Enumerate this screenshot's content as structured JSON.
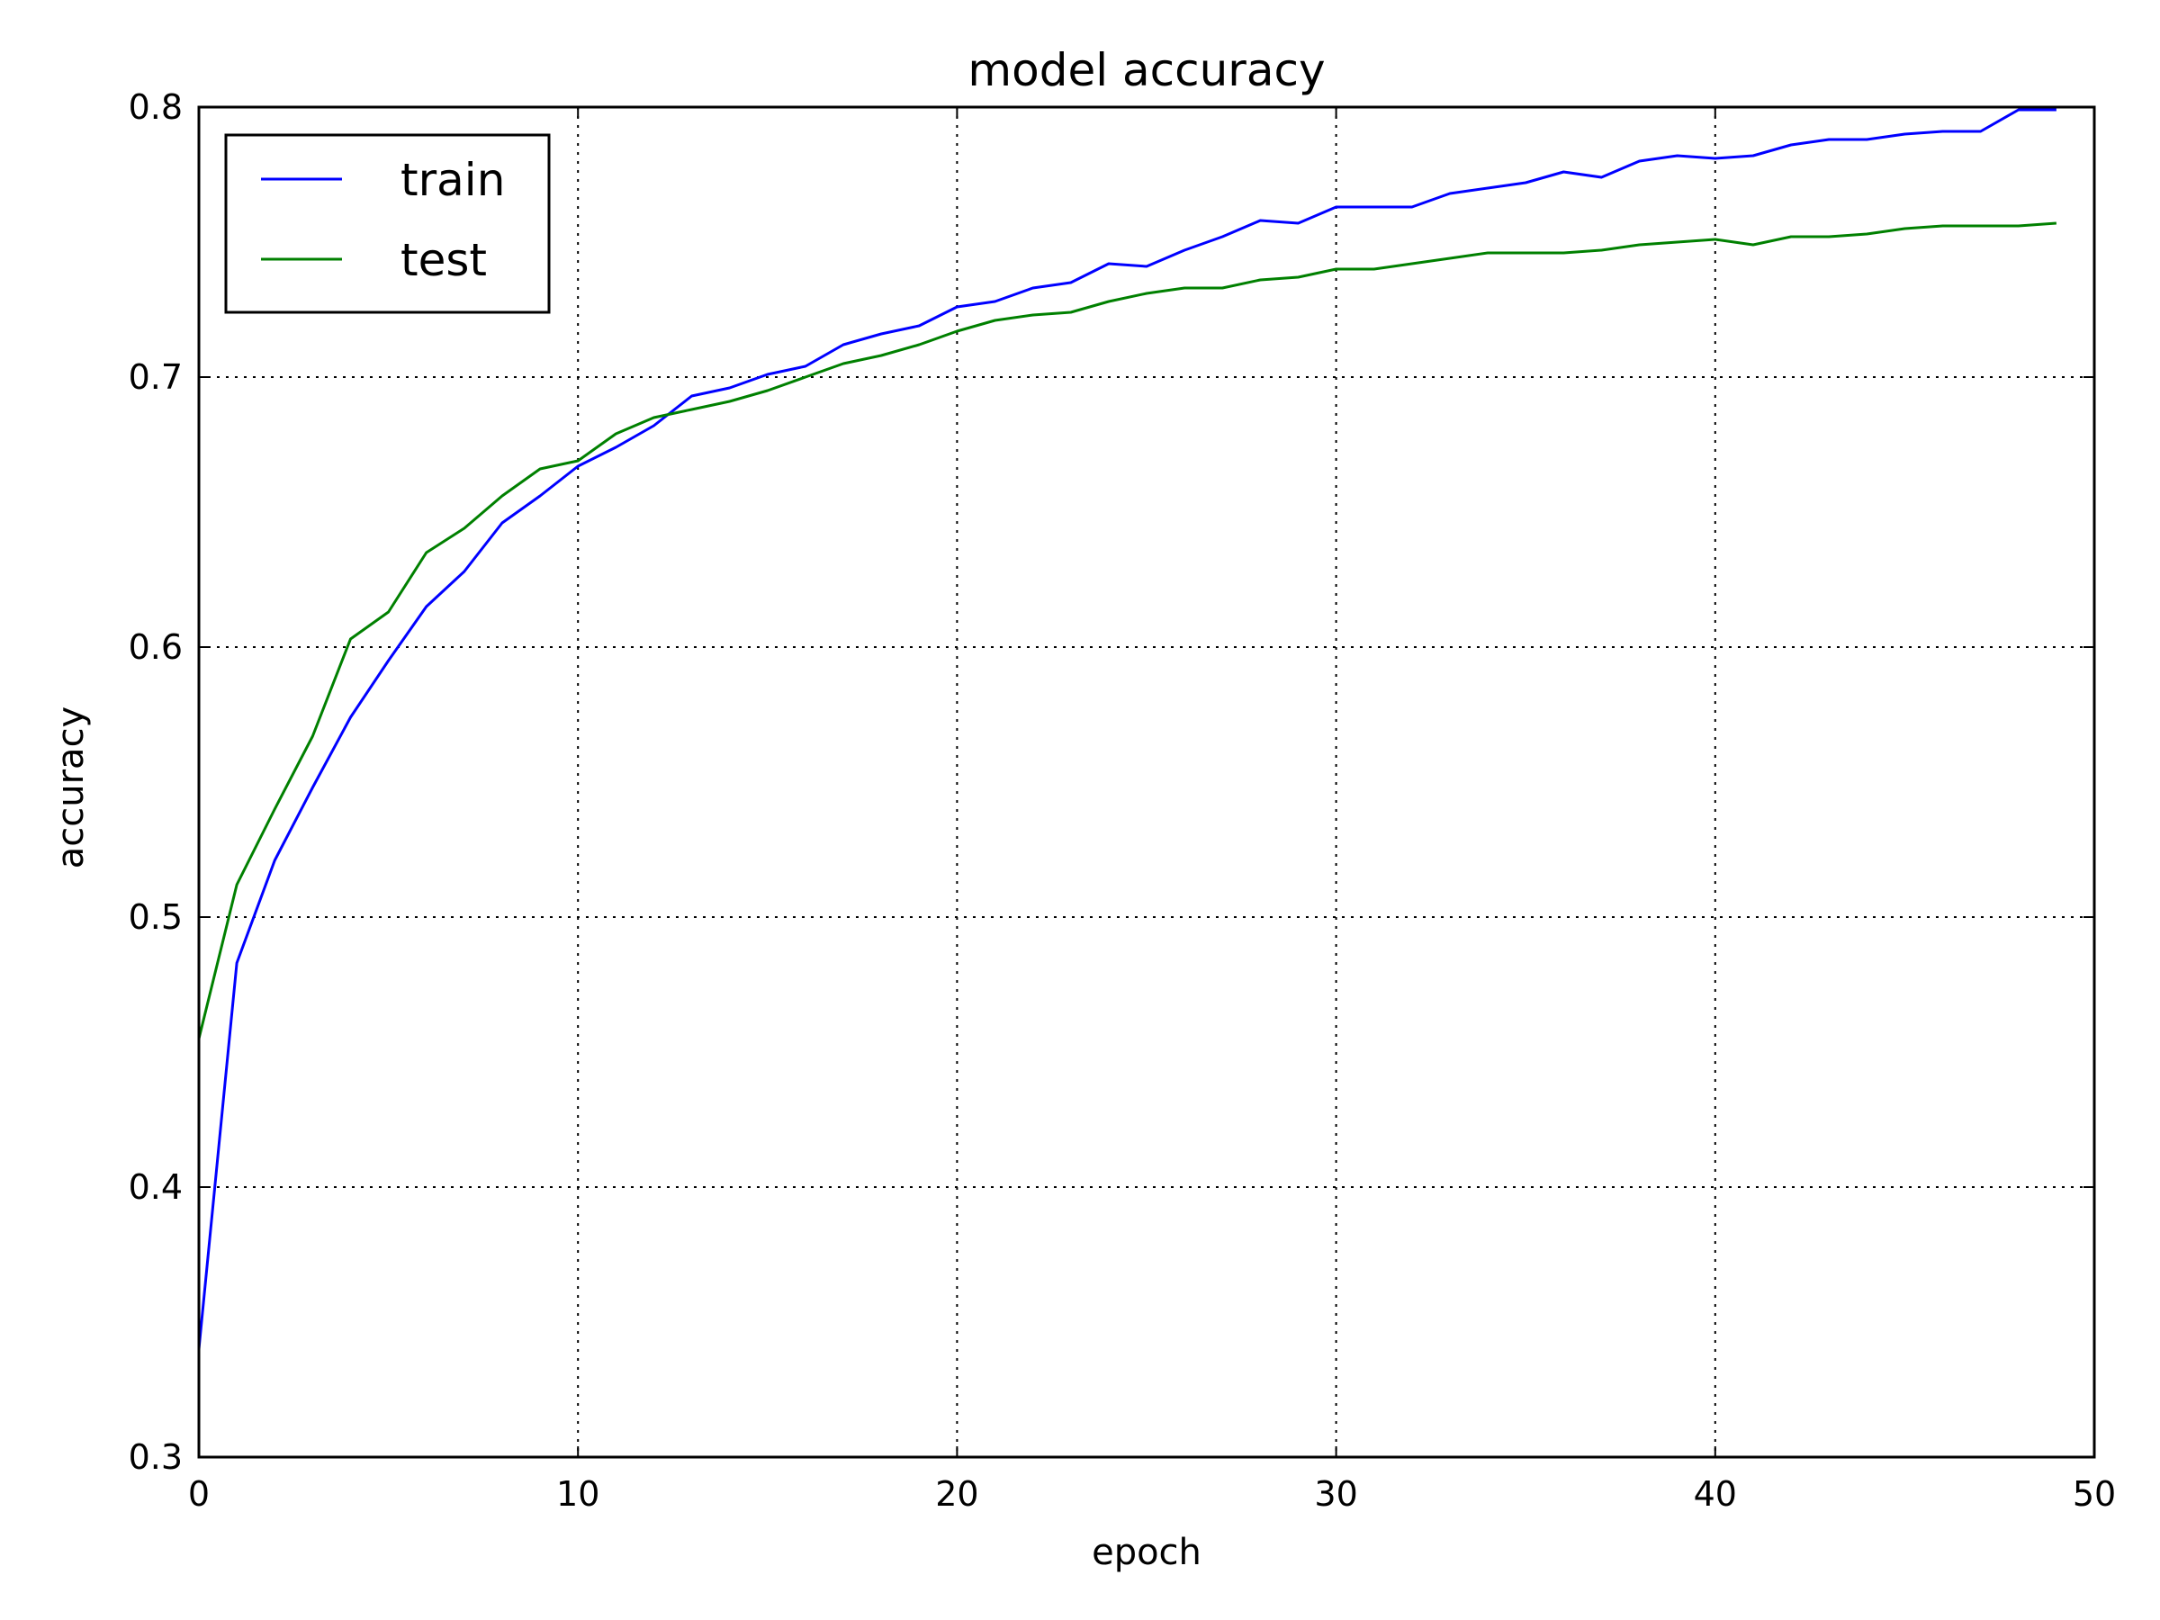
{
  "chart_data": {
    "type": "line",
    "title": "model accuracy",
    "xlabel": "epoch",
    "ylabel": "accuracy",
    "xlim": [
      0,
      50
    ],
    "ylim": [
      0.3,
      0.8
    ],
    "xticks": [
      0,
      10,
      20,
      30,
      40,
      50
    ],
    "yticks": [
      0.3,
      0.4,
      0.5,
      0.6,
      0.7,
      0.8
    ],
    "xtick_labels": [
      "0",
      "10",
      "20",
      "30",
      "40",
      "50"
    ],
    "ytick_labels": [
      "0.3",
      "0.4",
      "0.5",
      "0.6",
      "0.7",
      "0.8"
    ],
    "grid": true,
    "legend_position": "top-left",
    "x": [
      0,
      1,
      2,
      3,
      4,
      5,
      6,
      7,
      8,
      9,
      10,
      11,
      12,
      13,
      14,
      15,
      16,
      17,
      18,
      19,
      20,
      21,
      22,
      23,
      24,
      25,
      26,
      27,
      28,
      29,
      30,
      31,
      32,
      33,
      34,
      35,
      36,
      37,
      38,
      39,
      40,
      41,
      42,
      43,
      44,
      45,
      46,
      47,
      48,
      49
    ],
    "series": [
      {
        "name": "train",
        "color": "#0000ff",
        "values": [
          0.34,
          0.483,
          0.521,
          0.548,
          0.574,
          0.595,
          0.615,
          0.628,
          0.646,
          0.656,
          0.667,
          0.674,
          0.682,
          0.693,
          0.696,
          0.701,
          0.704,
          0.712,
          0.716,
          0.719,
          0.726,
          0.728,
          0.733,
          0.735,
          0.742,
          0.741,
          0.747,
          0.752,
          0.758,
          0.757,
          0.763,
          0.763,
          0.763,
          0.768,
          0.77,
          0.772,
          0.776,
          0.774,
          0.78,
          0.782,
          0.781,
          0.782,
          0.786,
          0.788,
          0.788,
          0.79,
          0.791,
          0.791,
          0.799,
          0.799
        ]
      },
      {
        "name": "test",
        "color": "#008000",
        "values": [
          0.455,
          0.512,
          0.54,
          0.567,
          0.603,
          0.613,
          0.635,
          0.644,
          0.656,
          0.666,
          0.669,
          0.679,
          0.685,
          0.688,
          0.691,
          0.695,
          0.7,
          0.705,
          0.708,
          0.712,
          0.717,
          0.721,
          0.723,
          0.724,
          0.728,
          0.731,
          0.733,
          0.733,
          0.736,
          0.737,
          0.74,
          0.74,
          0.742,
          0.744,
          0.746,
          0.746,
          0.746,
          0.747,
          0.749,
          0.75,
          0.751,
          0.749,
          0.752,
          0.752,
          0.753,
          0.755,
          0.756,
          0.756,
          0.756,
          0.757
        ]
      }
    ]
  }
}
